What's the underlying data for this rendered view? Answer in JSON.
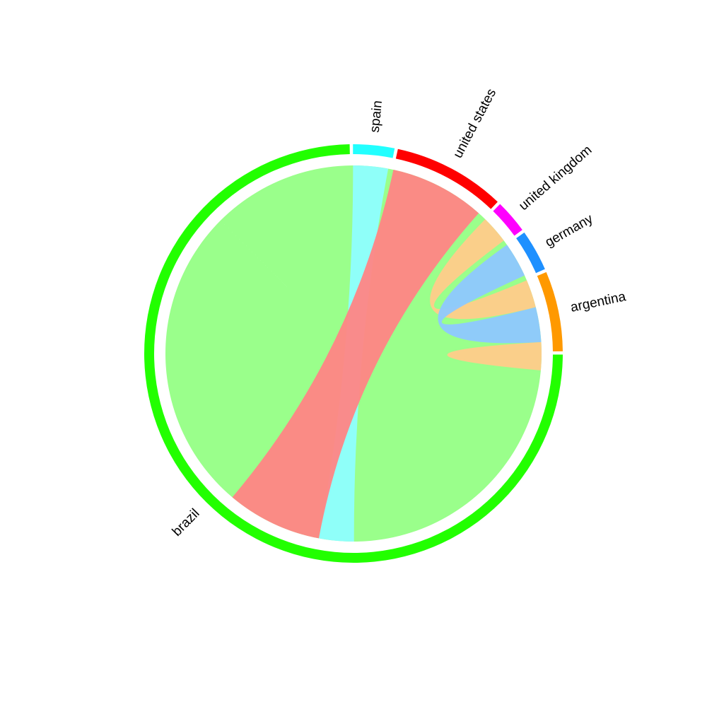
{
  "chart_data": {
    "type": "chord",
    "sectors": [
      {
        "name": "brazil",
        "value": 74.7,
        "color": "#22ff00"
      },
      {
        "name": "spain",
        "value": 3.2,
        "color": "#22ffff"
      },
      {
        "name": "united states",
        "value": 8.7,
        "color": "#ff0000"
      },
      {
        "name": "united kingdom",
        "value": 2.6,
        "color": "#ff00ff"
      },
      {
        "name": "germany",
        "value": 3.2,
        "color": "#1e90ff"
      },
      {
        "name": "argentina",
        "value": 6.2,
        "color": "#ff9900"
      }
    ],
    "links": [
      {
        "from": "brazil",
        "to": "brazil",
        "value": 62.5,
        "color": "#95ff85"
      },
      {
        "from": "brazil",
        "to": "spain",
        "value": 3.0,
        "color": "#8effff"
      },
      {
        "from": "brazil",
        "to": "united states",
        "value": 8.2,
        "color": "#ff8585"
      },
      {
        "from": "argentina",
        "to": "united kingdom",
        "value": 2.4,
        "color": "#ffcc8a"
      },
      {
        "from": "germany",
        "to": "argentina",
        "value": 3.0,
        "color": "#8ec8ff"
      },
      {
        "from": "argentina",
        "to": "argentina",
        "value": 1.2,
        "color": "#ffcc8a"
      }
    ]
  }
}
